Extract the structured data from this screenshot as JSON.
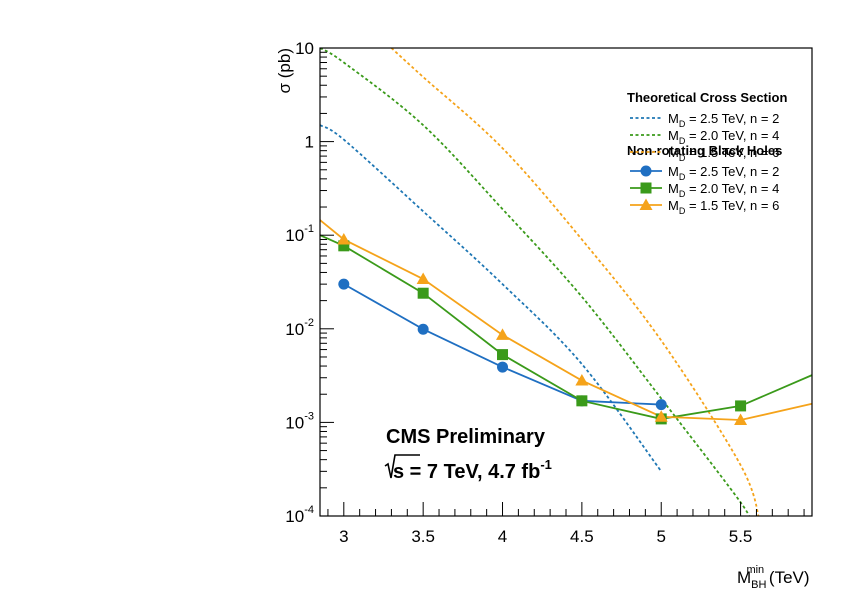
{
  "chart_data": {
    "type": "line",
    "title": "",
    "xlabel": {
      "main": "M",
      "sub": "BH",
      "sup": "min",
      "unit": " (TeV)"
    },
    "ylabel": "σ (pb)",
    "yscale": "log",
    "xlim": [
      2.85,
      5.95
    ],
    "ylim": [
      0.0001,
      10
    ],
    "x_ticks": [
      3,
      3.5,
      4,
      4.5,
      5,
      5.5
    ],
    "x_tick_labels": [
      "3",
      "3.5",
      "4",
      "4.5",
      "5",
      "5.5"
    ],
    "y_ticks": [
      {
        "value": 0.0001,
        "base": "10",
        "exp": "-4"
      },
      {
        "value": 0.001,
        "base": "10",
        "exp": "-3"
      },
      {
        "value": 0.01,
        "base": "10",
        "exp": "-2"
      },
      {
        "value": 0.1,
        "base": "10",
        "exp": "-1"
      },
      {
        "value": 1,
        "base": "1",
        "exp": ""
      },
      {
        "value": 10,
        "base": "10",
        "exp": ""
      }
    ],
    "legend": {
      "position": "top-right",
      "theory_header": "Theoretical Cross Section",
      "bh_header": "Non-rotating Black Holes"
    },
    "theory_series": [
      {
        "label": "M",
        "label_sub": "D",
        "label_rest": " = 2.5 TeV, n = 2",
        "color": "#1f77b4",
        "x": [
          2.85,
          3.0,
          3.5,
          4.0,
          4.5,
          5.0
        ],
        "y": [
          1.5,
          1.05,
          0.18,
          0.03,
          0.0042,
          0.0003
        ]
      },
      {
        "label": "M",
        "label_sub": "D",
        "label_rest": " = 2.0 TeV, n = 4",
        "color": "#3a9a1a",
        "x": [
          2.85,
          3.0,
          3.5,
          4.0,
          4.5,
          5.0,
          5.5,
          5.55
        ],
        "y": [
          10,
          7.0,
          1.5,
          0.19,
          0.022,
          0.0018,
          0.00014,
          9e-05
        ]
      },
      {
        "label": "M",
        "label_sub": "D",
        "label_rest": " = 1.5 TeV, n = 6",
        "color": "#f5a31a",
        "x": [
          3.3,
          3.5,
          4.0,
          4.5,
          5.0,
          5.5,
          5.62
        ],
        "y": [
          10,
          4.9,
          0.85,
          0.09,
          0.0075,
          0.00035,
          9e-05
        ]
      }
    ],
    "bh_series": [
      {
        "label": "M",
        "label_sub": "D",
        "label_rest": " = 2.5 TeV, n = 2",
        "color": "#1f6fc2",
        "marker": "circle",
        "x": [
          3.0,
          3.5,
          4.0,
          4.5,
          5.0
        ],
        "y": [
          0.03,
          0.0099,
          0.0039,
          0.0017,
          0.00155
        ]
      },
      {
        "label": "M",
        "label_sub": "D",
        "label_rest": " = 2.0 TeV, n = 4",
        "color": "#3a9a1a",
        "marker": "square",
        "x": [
          3.0,
          3.5,
          4.0,
          4.5,
          5.0,
          5.5
        ],
        "y": [
          0.077,
          0.024,
          0.0053,
          0.0017,
          0.00109,
          0.0015
        ],
        "extend_left": [
          2.85,
          0.1
        ],
        "extend_right": [
          5.95,
          0.0032
        ]
      },
      {
        "label": "M",
        "label_sub": "D",
        "label_rest": " = 1.5 TeV, n = 6",
        "color": "#f5a31a",
        "marker": "triangle",
        "x": [
          3.0,
          3.5,
          4.0,
          4.5,
          5.0,
          5.5
        ],
        "y": [
          0.09,
          0.034,
          0.0086,
          0.0028,
          0.00115,
          0.00106
        ],
        "extend_left": [
          2.85,
          0.145
        ],
        "extend_right": [
          5.95,
          0.00158
        ]
      }
    ],
    "annotations": {
      "experiment": "CMS Preliminary",
      "energy_prefix": "s",
      "energy_main": " = 7 TeV, 4.7 fb",
      "energy_sup": "-1"
    }
  }
}
